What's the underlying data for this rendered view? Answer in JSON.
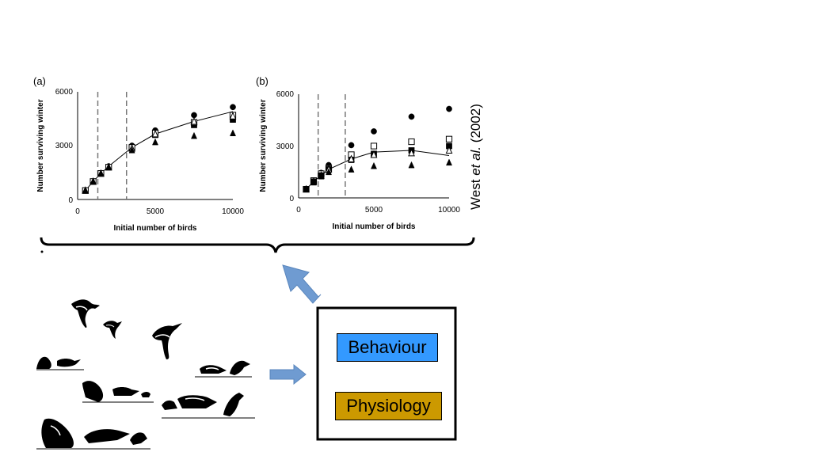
{
  "chart_data": [
    {
      "type": "scatter",
      "panel_label": "(a)",
      "xlabel": "Initial number of birds",
      "ylabel": "Number surviving winter",
      "xlim": [
        0,
        10000
      ],
      "ylim": [
        0,
        6000
      ],
      "xticks": [
        "0",
        "5000",
        "10000"
      ],
      "yticks": [
        "0",
        "3000",
        "6000"
      ],
      "vlines": [
        1300,
        3150
      ],
      "fit_line": {
        "x": [
          500,
          1000,
          1500,
          2000,
          3500,
          5000,
          7500,
          10000
        ],
        "y": [
          500,
          1000,
          1450,
          1850,
          2900,
          3650,
          4350,
          4900
        ]
      },
      "series": [
        {
          "marker": "circle-filled",
          "x": [
            500,
            1000,
            1500,
            2000,
            3500,
            5000,
            7500,
            10000
          ],
          "y": [
            500,
            1000,
            1450,
            1850,
            3000,
            3850,
            4700,
            5150
          ]
        },
        {
          "marker": "square-filled",
          "x": [
            500,
            1000,
            1500,
            2000,
            3500,
            5000,
            7500,
            10000
          ],
          "y": [
            500,
            1000,
            1450,
            1800,
            2850,
            3600,
            4150,
            4450
          ]
        },
        {
          "marker": "square-open",
          "x": [
            500,
            1000,
            1500,
            2000,
            3500,
            5000,
            7500,
            10000
          ],
          "y": [
            500,
            1000,
            1450,
            1800,
            2900,
            3700,
            4300,
            4700
          ]
        },
        {
          "marker": "triangle-open",
          "x": [
            500,
            1000,
            1500,
            2000,
            3500,
            5000,
            7500,
            10000
          ],
          "y": [
            500,
            1000,
            1450,
            1800,
            2850,
            3650,
            4350,
            4650
          ]
        },
        {
          "marker": "triangle-filled",
          "x": [
            500,
            1000,
            1500,
            2000,
            3500,
            5000,
            7500,
            10000
          ],
          "y": [
            500,
            1000,
            1450,
            1800,
            2750,
            3200,
            3550,
            3700
          ]
        }
      ]
    },
    {
      "type": "scatter",
      "panel_label": "(b)",
      "xlabel": "Initial number of birds",
      "ylabel": "Number surviving winter",
      "xlim": [
        0,
        10000
      ],
      "ylim": [
        0,
        6000
      ],
      "xticks": [
        "0",
        "5000",
        "10000"
      ],
      "yticks": [
        "0",
        "3000",
        "6000"
      ],
      "vlines": [
        1300,
        3100
      ],
      "fit_line": {
        "x": [
          500,
          1000,
          1500,
          2000,
          3500,
          5000,
          7500,
          10000
        ],
        "y": [
          500,
          950,
          1300,
          1650,
          2250,
          2650,
          2750,
          2450
        ]
      },
      "series": [
        {
          "marker": "circle-filled",
          "x": [
            500,
            1000,
            1500,
            2000,
            3500,
            5000,
            7500,
            10000
          ],
          "y": [
            500,
            1000,
            1450,
            1900,
            3050,
            3850,
            4700,
            5150
          ]
        },
        {
          "marker": "square-open",
          "x": [
            500,
            1000,
            1500,
            2000,
            3500,
            5000,
            7500,
            10000
          ],
          "y": [
            500,
            1000,
            1400,
            1700,
            2500,
            3000,
            3250,
            3400
          ]
        },
        {
          "marker": "square-filled",
          "x": [
            500,
            1000,
            1500,
            2000,
            3500,
            5000,
            7500,
            10000
          ],
          "y": [
            500,
            950,
            1300,
            1650,
            2200,
            2550,
            2750,
            3000
          ]
        },
        {
          "marker": "triangle-open",
          "x": [
            500,
            1000,
            1500,
            2000,
            3500,
            5000,
            7500,
            10000
          ],
          "y": [
            500,
            950,
            1300,
            1650,
            2250,
            2500,
            2600,
            2750
          ]
        },
        {
          "marker": "triangle-filled",
          "x": [
            500,
            1000,
            1500,
            2000,
            3500,
            5000,
            7500,
            10000
          ],
          "y": [
            500,
            900,
            1250,
            1500,
            1650,
            1850,
            1900,
            2050
          ]
        }
      ]
    }
  ],
  "citation": {
    "author": "West ",
    "etal": "et al.",
    "year": " (2002)"
  },
  "boxes": {
    "behaviour": "Behaviour",
    "physiology": "Physiology"
  },
  "colors": {
    "behaviour": "#3399ff",
    "physiology": "#cc9900",
    "arrow": "#6f9bd1",
    "dash": "#777777"
  }
}
